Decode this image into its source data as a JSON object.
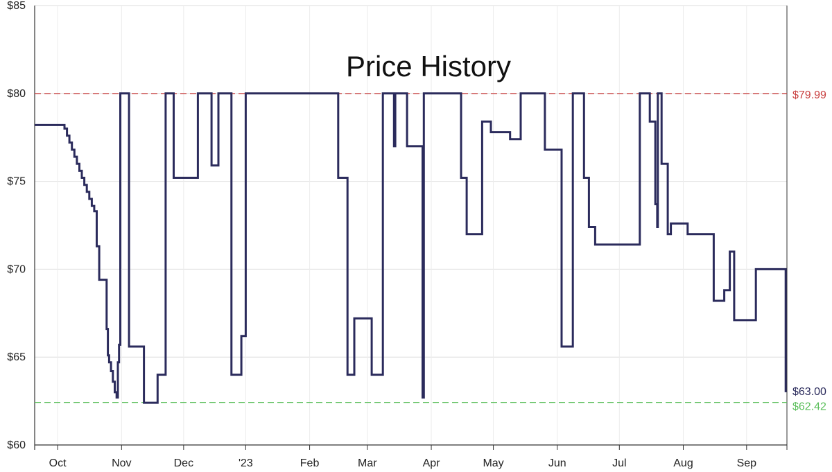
{
  "chart_data": {
    "type": "line",
    "title": "Price History",
    "xlabel": "",
    "ylabel": "",
    "ylim": [
      60,
      85
    ],
    "xlim": [
      0,
      12.12
    ],
    "yticks": [
      60,
      65,
      70,
      75,
      80,
      85
    ],
    "ytick_labels": [
      "$60",
      "$65",
      "$70",
      "$75",
      "$80",
      "$85"
    ],
    "xticks": [
      {
        "label": "Oct",
        "x": 0.37
      },
      {
        "label": "Nov",
        "x": 1.4
      },
      {
        "label": "Dec",
        "x": 2.4
      },
      {
        "label": "'23",
        "x": 3.4
      },
      {
        "label": "Feb",
        "x": 4.43
      },
      {
        "label": "Mar",
        "x": 5.36
      },
      {
        "label": "Apr",
        "x": 6.39
      },
      {
        "label": "May",
        "x": 7.39
      },
      {
        "label": "Jun",
        "x": 8.42
      },
      {
        "label": "Jul",
        "x": 9.42
      },
      {
        "label": "Aug",
        "x": 10.45
      },
      {
        "label": "Sep",
        "x": 11.47
      }
    ],
    "grid": true,
    "series": [
      {
        "name": "Price",
        "color": "#2b2b5c",
        "step": true,
        "x": [
          0,
          0.48,
          0.52,
          0.56,
          0.6,
          0.64,
          0.68,
          0.72,
          0.76,
          0.8,
          0.84,
          0.88,
          0.92,
          0.96,
          1.0,
          1.04,
          1.16,
          1.18,
          1.2,
          1.23,
          1.26,
          1.29,
          1.32,
          1.34,
          1.36,
          1.38,
          1.45,
          1.49,
          1.52,
          1.76,
          1.78,
          1.78,
          1.98,
          2.11,
          2.24,
          2.63,
          2.85,
          2.96,
          3.17,
          3.33,
          3.4,
          3.43,
          3.45,
          3.7,
          3.9,
          4.89,
          5.04,
          5.15,
          5.43,
          5.61,
          5.79,
          5.81,
          6.0,
          6.25,
          6.27,
          6.29,
          6.31,
          6.33,
          6.87,
          6.96,
          7.21,
          7.35,
          7.66,
          7.83,
          7.85,
          8.22,
          8.49,
          8.67,
          8.85,
          8.93,
          9.03,
          9.22,
          9.75,
          9.91,
          10.0,
          10.03,
          10.04,
          10.06,
          10.1,
          10.2,
          10.25,
          10.34,
          10.52,
          10.94,
          11.11,
          11.2,
          11.27,
          11.62,
          11.68,
          12.1
        ],
        "y": [
          78.2,
          78.0,
          77.6,
          77.2,
          76.8,
          76.4,
          76.0,
          75.6,
          75.2,
          74.8,
          74.4,
          74.0,
          73.6,
          73.3,
          71.3,
          69.4,
          66.6,
          65.1,
          64.7,
          64.2,
          63.6,
          63.0,
          62.7,
          64.7,
          65.7,
          80.0,
          80.0,
          80.0,
          65.6,
          62.4,
          62.4,
          62.4,
          64.0,
          80.0,
          75.2,
          80.0,
          75.9,
          80.0,
          64.0,
          66.2,
          80.0,
          80.0,
          80.0,
          80.0,
          80.0,
          75.2,
          64.0,
          67.2,
          64.0,
          80.0,
          77.0,
          80.0,
          77.0,
          62.7,
          80.0,
          80.0,
          80.0,
          80.0,
          75.2,
          72.0,
          78.4,
          77.8,
          77.4,
          80.0,
          80.0,
          76.8,
          65.6,
          80.0,
          75.2,
          72.4,
          71.4,
          71.4,
          80.0,
          78.4,
          73.7,
          72.4,
          80.0,
          80.0,
          76.0,
          72.0,
          72.6,
          72.6,
          72.0,
          68.2,
          68.8,
          71.0,
          67.1,
          70.0,
          70.0,
          63.0
        ]
      }
    ],
    "reference_lines": [
      {
        "name": "highest",
        "value": 79.99,
        "label": "$79.99",
        "color": "#c94040",
        "style": "dashed"
      },
      {
        "name": "lowest",
        "value": 62.42,
        "label": "$62.42",
        "color": "#5cbf5c",
        "style": "dashed"
      }
    ],
    "end_label": {
      "label": "$63.00",
      "value": 63.0,
      "color": "#2b2b5c"
    }
  }
}
